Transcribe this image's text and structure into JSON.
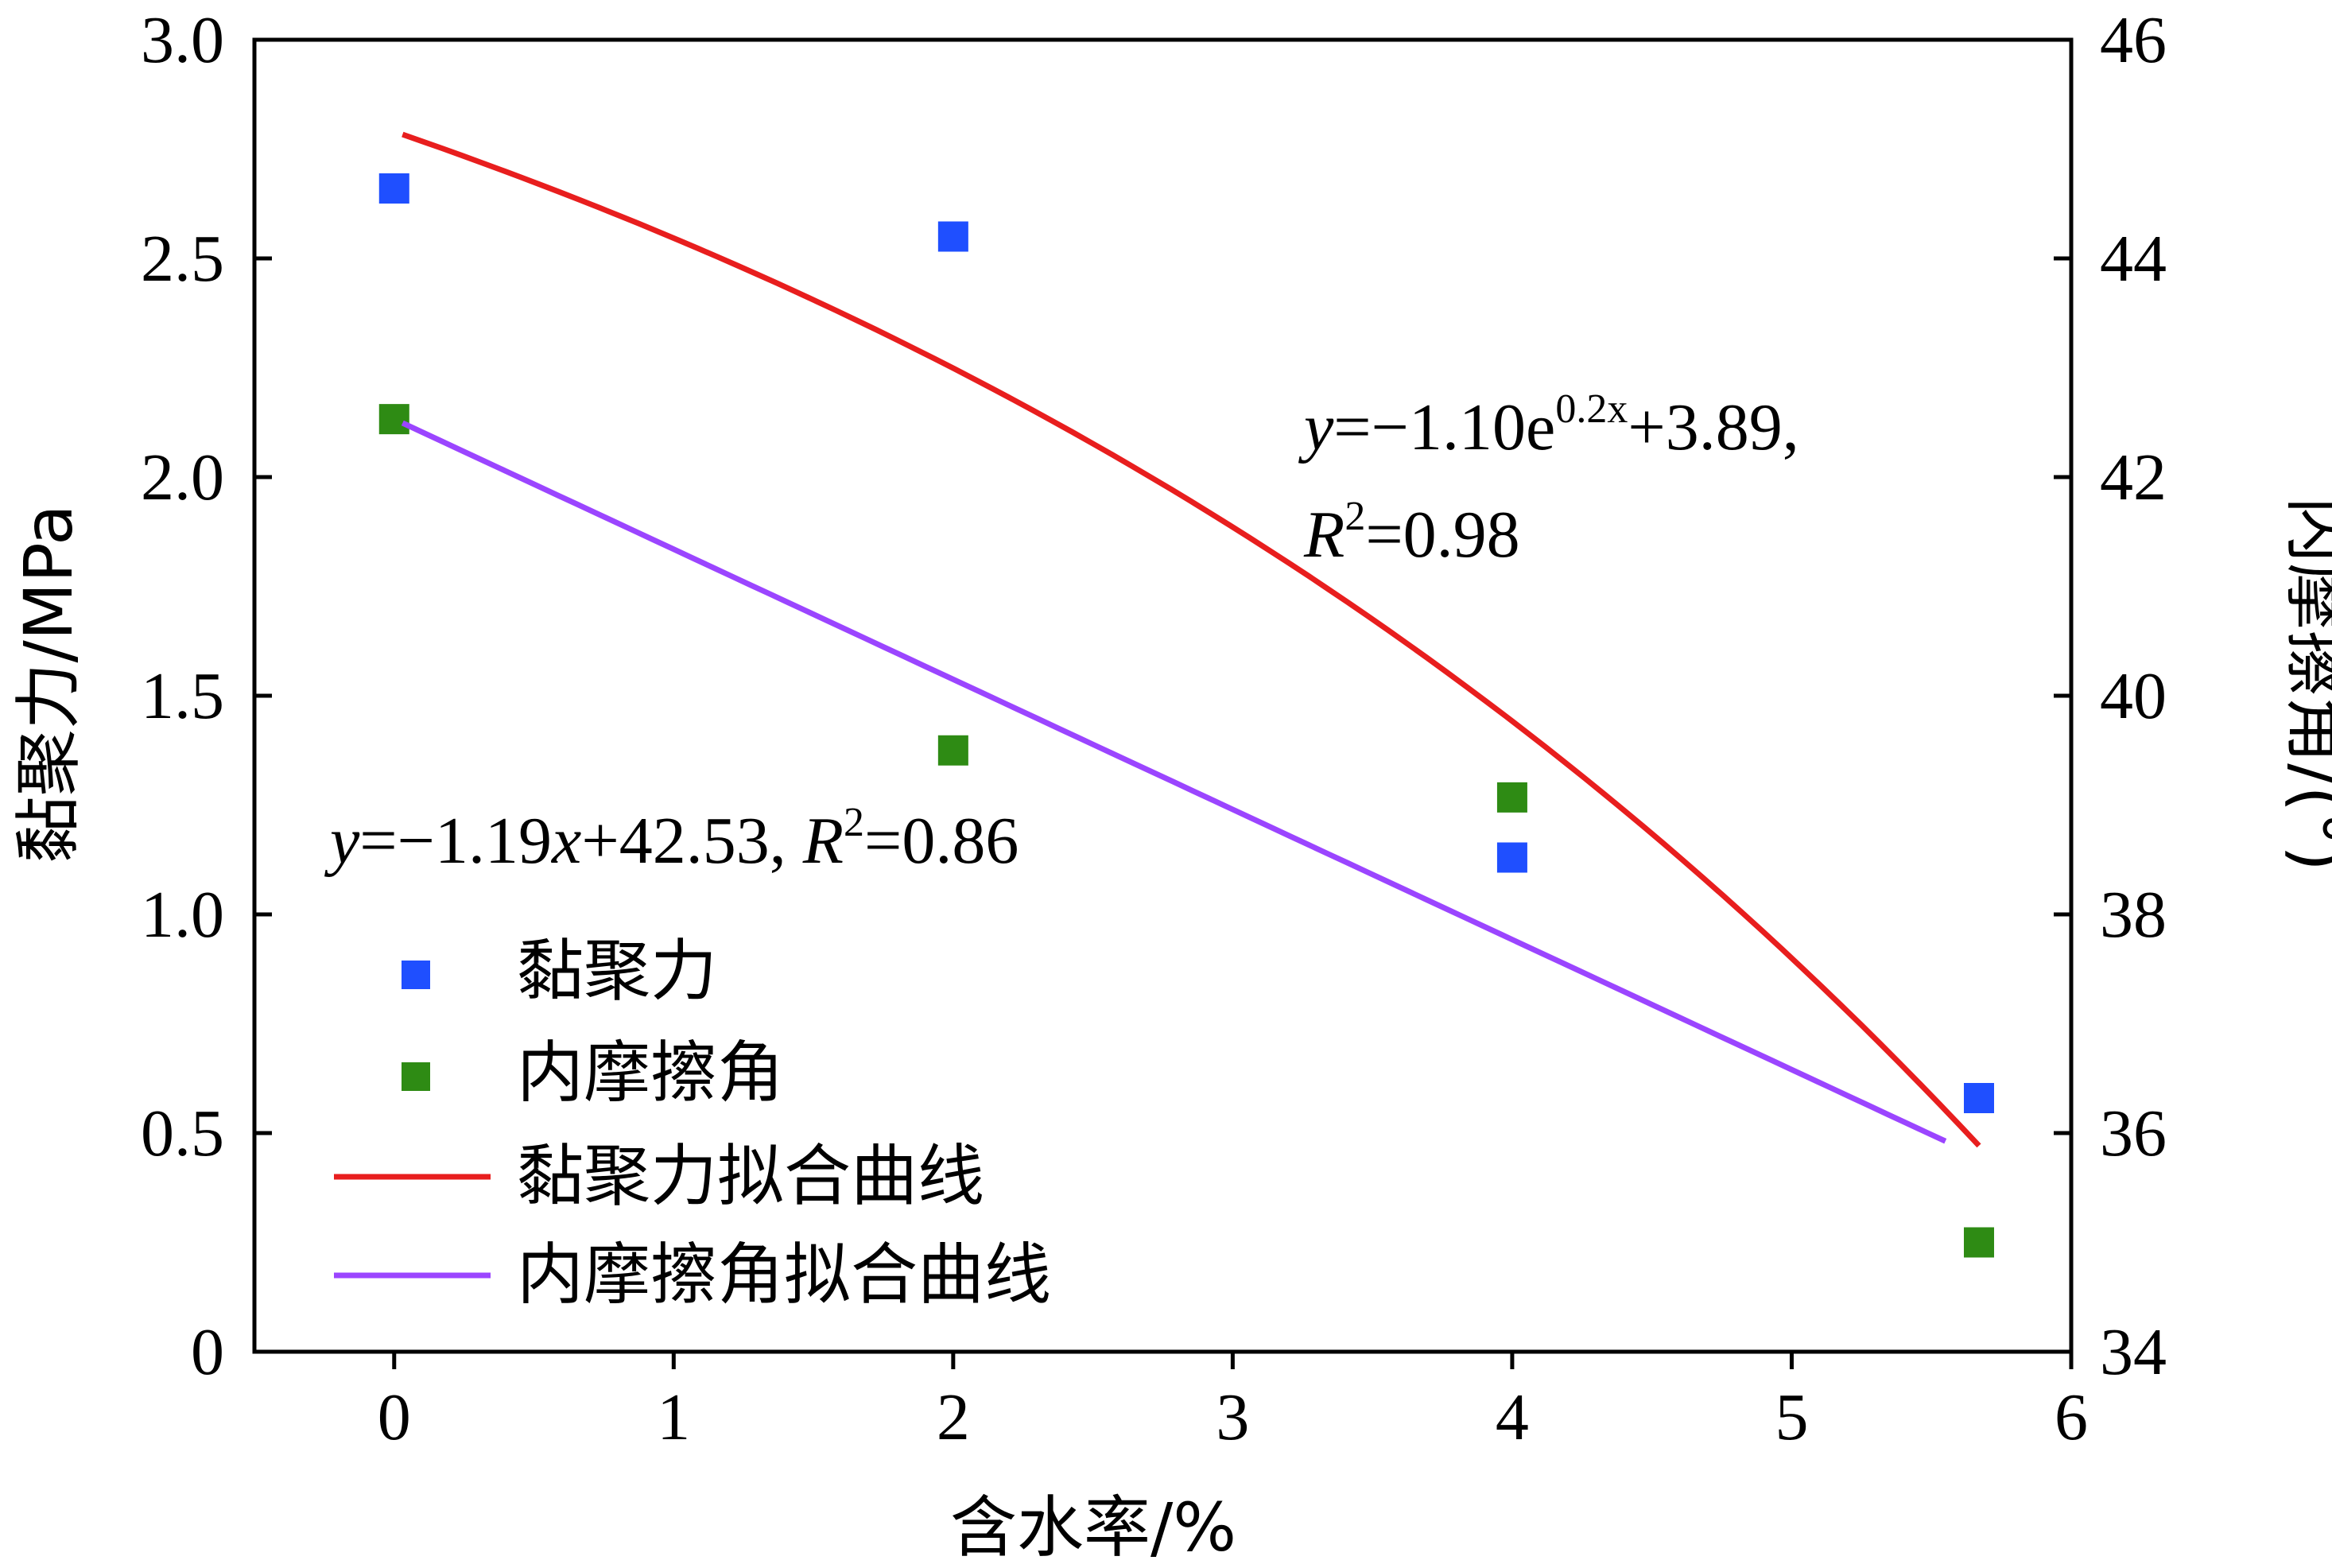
{
  "chart_data": {
    "type": "scatter",
    "xlabel": "含水率/%",
    "ylabel_left": "黏聚力/MPa",
    "ylabel_right": "内摩擦角/(°)",
    "xlim": [
      -0.5,
      6
    ],
    "ylim_left": [
      0,
      3.0
    ],
    "ylim_right": [
      34,
      46
    ],
    "x_ticks": [
      0,
      1,
      2,
      3,
      4,
      5,
      6
    ],
    "y_left_ticks": [
      0,
      0.5,
      1.0,
      1.5,
      2.0,
      2.5,
      3.0
    ],
    "y_left_tick_labels": [
      "0",
      "0.5",
      "1.0",
      "1.5",
      "2.0",
      "2.5",
      "3.0"
    ],
    "y_right_ticks": [
      34,
      36,
      38,
      40,
      42,
      44,
      46
    ],
    "grid": false,
    "legend_position": "lower-left",
    "series": [
      {
        "name": "黏聚力",
        "axis": "left",
        "kind": "points",
        "color": "#1f4fff",
        "x": [
          0,
          2,
          4,
          5.67
        ],
        "y": [
          2.66,
          2.55,
          1.13,
          0.58
        ]
      },
      {
        "name": "内摩擦角",
        "axis": "right",
        "kind": "points",
        "color": "#2e8b14",
        "x": [
          0,
          2,
          4,
          5.67
        ],
        "y": [
          42.53,
          39.5,
          39.07,
          35.0
        ]
      },
      {
        "name": "黏聚力拟合曲线",
        "axis": "left",
        "kind": "fit",
        "color": "#e81e1e",
        "fit": {
          "form": "exp",
          "a": -1.1,
          "b": 0.2,
          "c": 3.89
        },
        "x_range": [
          0.03,
          5.67
        ]
      },
      {
        "name": "内摩擦角拟合曲线",
        "axis": "right",
        "kind": "fit",
        "color": "#9b45ff",
        "fit": {
          "form": "linear",
          "slope": -1.19,
          "intercept": 42.53
        },
        "x_range": [
          0.03,
          5.55
        ]
      }
    ],
    "annotations": {
      "cohesion_eq": {
        "y": "y",
        "eq": "=−1.10e",
        "exp": "0.2x",
        "tail": "+3.89,",
        "r": "R",
        "r_exp": "2",
        "r_val": "=0.98"
      },
      "friction_eq": {
        "y": "y",
        "eq": "=−1.19",
        "x": "x",
        "tail": "+42.53, ",
        "r": "R",
        "r_exp": "2",
        "r_val": "=0.86"
      }
    }
  }
}
